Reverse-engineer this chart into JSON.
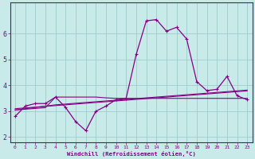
{
  "xlabel": "Windchill (Refroidissement éolien,°C)",
  "background_color": "#c8eae8",
  "grid_color": "#a0cccc",
  "line_color": "#880088",
  "x_data": [
    0,
    1,
    2,
    3,
    4,
    5,
    6,
    7,
    8,
    9,
    10,
    11,
    12,
    13,
    14,
    15,
    16,
    17,
    18,
    19,
    20,
    21,
    22,
    23
  ],
  "y_main": [
    2.8,
    3.2,
    3.3,
    3.3,
    3.55,
    3.15,
    2.6,
    2.25,
    3.0,
    3.2,
    3.45,
    3.5,
    5.2,
    6.5,
    6.55,
    6.1,
    6.25,
    5.8,
    4.15,
    3.8,
    3.85,
    4.35,
    3.6,
    3.45
  ],
  "y_trend1": [
    3.05,
    3.08,
    3.11,
    3.14,
    3.55,
    3.55,
    3.55,
    3.55,
    3.55,
    3.52,
    3.5,
    3.5,
    3.5,
    3.5,
    3.5,
    3.5,
    3.5,
    3.5,
    3.5,
    3.5,
    3.5,
    3.5,
    3.5,
    3.5
  ],
  "y_trend2": [
    3.05,
    3.1,
    3.15,
    3.2,
    3.25,
    3.28,
    3.31,
    3.34,
    3.37,
    3.4,
    3.43,
    3.46,
    3.49,
    3.52,
    3.55,
    3.58,
    3.61,
    3.64,
    3.67,
    3.7,
    3.73,
    3.76,
    3.79,
    3.82
  ],
  "y_trend3": [
    3.1,
    3.13,
    3.16,
    3.19,
    3.22,
    3.25,
    3.28,
    3.31,
    3.34,
    3.37,
    3.4,
    3.43,
    3.46,
    3.49,
    3.52,
    3.55,
    3.58,
    3.61,
    3.64,
    3.67,
    3.7,
    3.73,
    3.76,
    3.79
  ],
  "ylim": [
    1.8,
    7.2
  ],
  "yticks": [
    2,
    3,
    4,
    5,
    6
  ],
  "xlim": [
    -0.5,
    23.5
  ],
  "xticks": [
    0,
    1,
    2,
    3,
    4,
    5,
    6,
    7,
    8,
    9,
    10,
    11,
    12,
    13,
    14,
    15,
    16,
    17,
    18,
    19,
    20,
    21,
    22,
    23
  ]
}
